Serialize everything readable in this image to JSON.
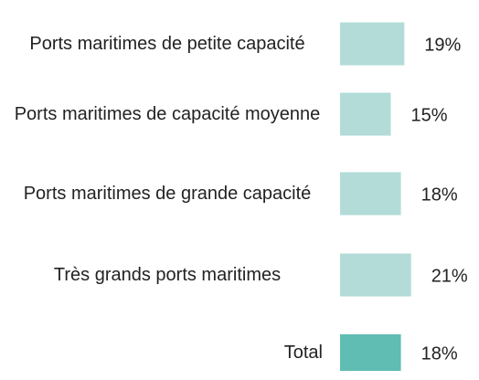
{
  "chart_data": {
    "type": "barh",
    "categories": [
      "Ports maritimes de petite capacité",
      "Ports maritimes de capacité moyenne",
      "Ports maritimes de grande capacité",
      "Très grands ports maritimes",
      "Total"
    ],
    "values": [
      19,
      15,
      18,
      21,
      18
    ],
    "value_labels": [
      "19%",
      "15%",
      "18%",
      "21%",
      "18%"
    ],
    "colors": [
      "#b3dcd9",
      "#b3dcd9",
      "#b3dcd9",
      "#b3dcd9",
      "#5fbdb3"
    ]
  }
}
